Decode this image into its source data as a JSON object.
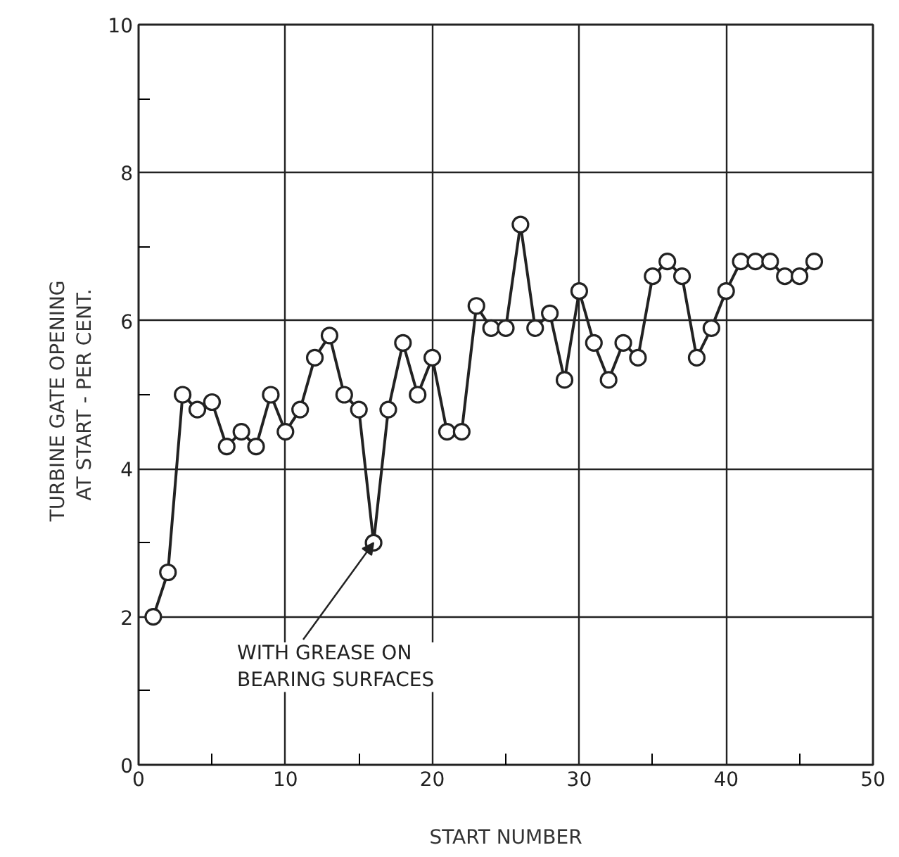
{
  "chart_data": {
    "type": "line",
    "xlabel": "START NUMBER",
    "ylabel": "TURBINE  GATE  OPENING\nAT START - PER CENT.",
    "x": [
      1,
      2,
      3,
      4,
      5,
      6,
      7,
      8,
      9,
      10,
      11,
      12,
      13,
      14,
      15,
      16,
      17,
      18,
      19,
      20,
      21,
      22,
      23,
      24,
      25,
      26,
      27,
      28,
      29,
      30,
      31,
      32,
      33,
      34,
      35,
      36,
      37,
      38,
      39,
      40,
      41,
      42,
      43,
      44,
      45,
      46
    ],
    "series": [
      {
        "color": "#222222",
        "values": [
          2.0,
          2.6,
          5.0,
          4.8,
          4.9,
          4.3,
          4.5,
          4.3,
          5.0,
          4.5,
          4.8,
          5.5,
          5.8,
          5.0,
          4.8,
          3.0,
          4.8,
          5.7,
          5.0,
          5.5,
          4.5,
          4.5,
          6.2,
          5.9,
          5.9,
          7.3,
          5.9,
          6.1,
          5.2,
          6.4,
          5.7,
          5.2,
          5.7,
          5.5,
          6.6,
          6.8,
          6.6,
          5.5,
          5.9,
          6.4,
          6.8,
          6.8,
          6.8,
          6.6,
          6.6,
          6.8
        ]
      }
    ],
    "xlim": [
      0,
      50
    ],
    "ylim": [
      0,
      10
    ],
    "xticks": [
      0,
      {
        "value": 5,
        "label": null
      },
      10,
      {
        "value": 15,
        "label": null
      },
      20,
      {
        "value": 25,
        "label": null
      },
      30,
      {
        "value": 35,
        "label": null
      },
      40,
      {
        "value": 45,
        "label": null
      },
      50
    ],
    "yticks": [
      0,
      {
        "value": 1,
        "label": null
      },
      2,
      {
        "value": 3,
        "label": null
      },
      4,
      {
        "value": 5,
        "label": null
      },
      6,
      {
        "value": 7,
        "label": null
      },
      8,
      {
        "value": 9,
        "label": null
      },
      10
    ],
    "grid": true,
    "marker": "circle",
    "line_style": "solid",
    "annotations": [
      {
        "text": "WITH GREASE ON\nBEARING SURFACES",
        "x": 16,
        "y": 3.0
      }
    ]
  }
}
